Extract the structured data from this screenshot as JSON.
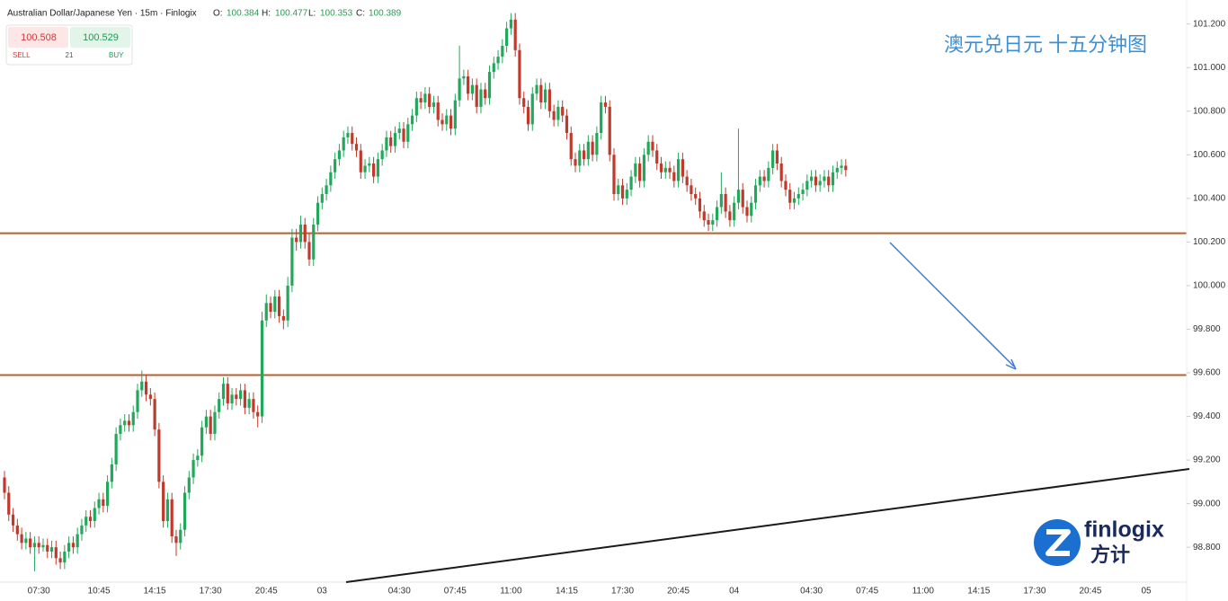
{
  "header": {
    "title": "Australian Dollar/Japanese Yen · 15m · Finlogix",
    "ohlc_labels": [
      "O:",
      "H:",
      "L:",
      "C:"
    ],
    "ohlc_values": [
      100.384,
      100.477,
      100.353,
      100.389
    ]
  },
  "trade_panel": {
    "sell_price": 100.508,
    "buy_price": 100.529,
    "spread": 21,
    "sell_label": "SELL",
    "buy_label": "BUY"
  },
  "annotation": "澳元兑日元 十五分钟图",
  "logo": {
    "text": "finlogix",
    "subtext": "方计"
  },
  "chart_data": {
    "type": "candlestick",
    "up_color": "#22a85a",
    "down_color": "#c0392b",
    "ylim": [
      98.64,
      101.31
    ],
    "yticks": [
      {
        "value": 98.8,
        "label": "98.800"
      },
      {
        "value": 99.0,
        "label": "99.000"
      },
      {
        "value": 99.2,
        "label": "99.200"
      },
      {
        "value": 99.4,
        "label": "99.400"
      },
      {
        "value": 99.6,
        "label": "99.600"
      },
      {
        "value": 99.8,
        "label": "99.800"
      },
      {
        "value": 100.0,
        "label": "100.000"
      },
      {
        "value": 100.2,
        "label": "100.200"
      },
      {
        "value": 100.4,
        "label": "100.400"
      },
      {
        "value": 100.6,
        "label": "100.600"
      },
      {
        "value": 100.8,
        "label": "100.800"
      },
      {
        "value": 101.0,
        "label": "101.000"
      },
      {
        "value": 101.2,
        "label": "101.200"
      }
    ],
    "levels": [
      100.24,
      99.59
    ],
    "level_color": "#b8602e",
    "categories": [
      null,
      null,
      null,
      null,
      null,
      null,
      null,
      null,
      "07:30",
      null,
      null,
      null,
      null,
      null,
      null,
      null,
      null,
      null,
      null,
      null,
      null,
      null,
      "10:45",
      null,
      null,
      null,
      null,
      null,
      null,
      null,
      null,
      null,
      null,
      null,
      null,
      "14:15",
      null,
      null,
      null,
      null,
      null,
      null,
      null,
      null,
      null,
      null,
      null,
      null,
      "17:30",
      null,
      null,
      null,
      null,
      null,
      null,
      null,
      null,
      null,
      null,
      null,
      null,
      "20:45",
      null,
      null,
      null,
      null,
      null,
      null,
      null,
      null,
      null,
      null,
      null,
      null,
      "03",
      null,
      null,
      null,
      null,
      null,
      null,
      null,
      null,
      null,
      null,
      null,
      null,
      null,
      null,
      null,
      null,
      null,
      "04:30",
      null,
      null,
      null,
      null,
      null,
      null,
      null,
      null,
      null,
      null,
      null,
      null,
      "07:45",
      null,
      null,
      null,
      null,
      null,
      null,
      null,
      null,
      null,
      null,
      null,
      null,
      "11:00",
      null,
      null,
      null,
      null,
      null,
      null,
      null,
      null,
      null,
      null,
      null,
      null,
      "14:15",
      null,
      null,
      null,
      null,
      null,
      null,
      null,
      null,
      null,
      null,
      null,
      null,
      "17:30",
      null,
      null,
      null,
      null,
      null,
      null,
      null,
      null,
      null,
      null,
      null,
      null,
      "20:45",
      null,
      null,
      null,
      null,
      null,
      null,
      null,
      null,
      null,
      null,
      null,
      null,
      "04",
      null,
      null,
      null,
      null,
      null,
      null,
      null,
      null,
      null,
      null,
      null,
      null,
      null,
      null,
      null,
      null,
      null,
      "04:30",
      null,
      null,
      null,
      null,
      null,
      null,
      null,
      null,
      null,
      null,
      null,
      null,
      "07:45",
      null,
      null,
      null,
      null,
      null,
      null,
      null,
      null,
      null,
      null,
      null,
      null,
      "11:00",
      null,
      null,
      null,
      null,
      null,
      null,
      null,
      null,
      null,
      null,
      null,
      null,
      "14:15",
      null,
      null,
      null,
      null,
      null,
      null,
      null,
      null,
      null,
      null,
      null,
      null,
      "17:30",
      null,
      null,
      null,
      null,
      null,
      null,
      null,
      null,
      null,
      null,
      null,
      null,
      "20:45",
      null,
      null,
      null,
      null,
      null,
      null,
      null,
      null,
      null,
      null,
      null,
      null,
      "05",
      null,
      null,
      null,
      null,
      null,
      null,
      null,
      null,
      null
    ],
    "open": [
      99.12,
      99.05,
      98.95,
      98.9,
      98.86,
      98.82,
      98.84,
      98.8,
      98.82,
      98.8,
      98.81,
      98.78,
      98.8,
      98.75,
      98.73,
      98.78,
      98.82,
      98.8,
      98.86,
      98.9,
      98.94,
      98.92,
      98.98,
      99.02,
      98.99,
      99.1,
      99.18,
      99.32,
      99.36,
      99.38,
      99.36,
      99.42,
      99.52,
      99.56,
      99.5,
      99.48,
      99.34,
      99.1,
      98.92,
      99.02,
      98.85,
      98.82,
      98.88,
      99.05,
      99.12,
      99.2,
      99.22,
      99.35,
      99.4,
      99.32,
      99.42,
      99.48,
      99.55,
      99.46,
      99.5,
      99.48,
      99.52,
      99.44,
      99.48,
      99.42,
      99.4,
      99.84,
      99.92,
      99.88,
      99.95,
      99.86,
      99.84,
      100.0,
      100.22,
      100.2,
      100.28,
      100.2,
      100.12,
      100.28,
      100.38,
      100.42,
      100.46,
      100.52,
      100.58,
      100.62,
      100.68,
      100.7,
      100.65,
      100.62,
      100.52,
      100.55,
      100.56,
      100.5,
      100.58,
      100.62,
      100.68,
      100.64,
      100.7,
      100.72,
      100.66,
      100.74,
      100.78,
      100.86,
      100.84,
      100.88,
      100.82,
      100.84,
      100.76,
      100.74,
      100.78,
      100.72,
      100.85,
      100.95,
      100.96,
      100.88,
      100.92,
      100.82,
      100.9,
      100.86,
      100.98,
      101.02,
      101.05,
      101.1,
      101.18,
      101.22,
      101.08,
      100.86,
      100.82,
      100.74,
      100.88,
      100.92,
      100.84,
      100.9,
      100.8,
      100.76,
      100.82,
      100.78,
      100.7,
      100.58,
      100.55,
      100.62,
      100.58,
      100.66,
      100.6,
      100.7,
      100.84,
      100.82,
      100.6,
      100.42,
      100.46,
      100.4,
      100.44,
      100.5,
      100.56,
      100.48,
      100.6,
      100.66,
      100.62,
      100.56,
      100.52,
      100.54,
      100.52,
      100.48,
      100.58,
      100.5,
      100.46,
      100.42,
      100.4,
      100.34,
      100.3,
      100.28,
      100.3,
      100.36,
      100.42,
      100.34,
      100.3,
      100.38,
      100.44,
      100.36,
      100.32,
      100.38,
      100.46,
      100.5,
      100.48,
      100.54,
      100.62,
      100.56,
      100.48,
      100.44,
      100.38,
      100.4,
      100.42,
      100.44,
      100.48,
      100.5,
      100.46,
      100.48,
      100.5,
      100.46,
      100.52,
      100.54,
      100.55,
      null,
      null,
      null,
      null,
      null,
      null,
      null,
      null,
      null,
      null,
      null,
      null,
      null,
      null,
      null,
      null,
      null,
      null,
      null,
      null,
      null,
      null,
      null,
      null,
      null,
      null,
      null,
      null,
      null,
      null,
      null,
      null,
      null,
      null,
      null,
      null,
      null,
      null,
      null,
      null,
      null,
      null,
      null,
      null,
      null,
      null,
      null,
      null,
      null,
      null,
      null,
      null,
      null,
      null,
      null,
      null,
      null,
      null,
      null,
      null,
      null,
      null,
      null,
      null,
      null,
      null,
      null,
      null,
      null,
      null,
      null,
      null,
      null,
      null,
      null,
      null,
      null,
      null,
      null
    ],
    "high": [
      99.15,
      99.08,
      98.98,
      98.93,
      98.89,
      98.87,
      98.87,
      98.85,
      98.85,
      98.84,
      98.84,
      98.83,
      98.83,
      98.78,
      98.81,
      98.85,
      98.85,
      98.89,
      98.93,
      98.97,
      98.97,
      99.01,
      99.05,
      99.05,
      99.13,
      99.21,
      99.35,
      99.39,
      99.41,
      99.41,
      99.45,
      99.55,
      99.61,
      99.59,
      99.53,
      99.51,
      99.37,
      99.13,
      99.05,
      99.05,
      98.88,
      98.91,
      99.08,
      99.15,
      99.23,
      99.25,
      99.38,
      99.43,
      99.43,
      99.45,
      99.51,
      99.58,
      99.58,
      99.53,
      99.53,
      99.55,
      99.55,
      99.51,
      99.51,
      99.45,
      99.88,
      99.96,
      99.95,
      99.98,
      99.98,
      99.89,
      100.04,
      100.26,
      100.26,
      100.32,
      100.31,
      100.24,
      100.31,
      100.41,
      100.45,
      100.49,
      100.55,
      100.61,
      100.65,
      100.71,
      100.73,
      100.73,
      100.68,
      100.65,
      100.58,
      100.59,
      100.59,
      100.61,
      100.65,
      100.71,
      100.71,
      100.73,
      100.75,
      100.75,
      100.77,
      100.81,
      100.89,
      100.89,
      100.91,
      100.91,
      100.87,
      100.87,
      100.79,
      100.81,
      100.81,
      100.88,
      101.1,
      100.99,
      100.99,
      100.95,
      100.95,
      100.93,
      100.93,
      101.01,
      101.05,
      101.08,
      101.13,
      101.21,
      101.25,
      101.25,
      101.11,
      100.89,
      100.85,
      100.91,
      100.95,
      100.95,
      100.93,
      100.93,
      100.83,
      100.85,
      100.85,
      100.81,
      100.73,
      100.61,
      100.65,
      100.65,
      100.69,
      100.69,
      100.73,
      100.87,
      100.87,
      100.85,
      100.63,
      100.49,
      100.49,
      100.47,
      100.53,
      100.59,
      100.59,
      100.63,
      100.69,
      100.69,
      100.65,
      100.59,
      100.57,
      100.57,
      100.55,
      100.61,
      100.61,
      100.53,
      100.49,
      100.45,
      100.43,
      100.37,
      100.33,
      100.33,
      100.39,
      100.52,
      100.45,
      100.37,
      100.41,
      100.72,
      100.47,
      100.39,
      100.41,
      100.49,
      100.53,
      100.53,
      100.57,
      100.65,
      100.65,
      100.59,
      100.51,
      100.47,
      100.43,
      100.45,
      100.47,
      100.51,
      100.53,
      100.53,
      100.51,
      100.53,
      100.53,
      100.55,
      100.57,
      100.58,
      100.58,
      null,
      null,
      null,
      null,
      null,
      null,
      null,
      null,
      null,
      null,
      null,
      null,
      null,
      null,
      null,
      null,
      null,
      null,
      null,
      null,
      null,
      null,
      null,
      null,
      null,
      null,
      null,
      null,
      null,
      null,
      null,
      null,
      null,
      null,
      null,
      null,
      null,
      null,
      null,
      null,
      null,
      null,
      null,
      null,
      null,
      null,
      null,
      null,
      null,
      null,
      null,
      null,
      null,
      null,
      null,
      null,
      null,
      null,
      null,
      null,
      null,
      null,
      null,
      null,
      null,
      null,
      null,
      null,
      null,
      null,
      null,
      null,
      null,
      null,
      null,
      null,
      null,
      null,
      null
    ],
    "low": [
      99.02,
      98.92,
      98.87,
      98.83,
      98.79,
      98.79,
      98.77,
      98.69,
      98.77,
      98.78,
      98.75,
      98.75,
      98.72,
      98.7,
      98.7,
      98.75,
      98.77,
      98.77,
      98.83,
      98.87,
      98.89,
      98.89,
      98.95,
      98.96,
      98.96,
      99.07,
      99.15,
      99.29,
      99.33,
      99.33,
      99.33,
      99.39,
      99.49,
      99.47,
      99.45,
      99.31,
      99.07,
      98.89,
      98.89,
      98.82,
      98.76,
      98.79,
      98.85,
      99.02,
      99.09,
      99.17,
      99.19,
      99.32,
      99.29,
      99.29,
      99.39,
      99.45,
      99.43,
      99.43,
      99.45,
      99.45,
      99.41,
      99.41,
      99.39,
      99.35,
      99.37,
      99.81,
      99.85,
      99.85,
      99.83,
      99.8,
      99.81,
      99.97,
      100.16,
      100.17,
      100.17,
      100.09,
      100.09,
      100.25,
      100.35,
      100.39,
      100.43,
      100.49,
      100.55,
      100.59,
      100.65,
      100.62,
      100.59,
      100.49,
      100.49,
      100.52,
      100.47,
      100.47,
      100.55,
      100.59,
      100.61,
      100.61,
      100.67,
      100.63,
      100.63,
      100.71,
      100.75,
      100.81,
      100.81,
      100.79,
      100.79,
      100.73,
      100.71,
      100.71,
      100.69,
      100.69,
      100.82,
      100.92,
      100.85,
      100.85,
      100.79,
      100.79,
      100.83,
      100.83,
      100.95,
      100.99,
      101.02,
      101.07,
      101.15,
      101.05,
      100.83,
      100.79,
      100.71,
      100.71,
      100.85,
      100.81,
      100.81,
      100.77,
      100.73,
      100.73,
      100.75,
      100.67,
      100.55,
      100.52,
      100.52,
      100.55,
      100.55,
      100.57,
      100.57,
      100.67,
      100.79,
      100.57,
      100.39,
      100.39,
      100.37,
      100.37,
      100.41,
      100.47,
      100.45,
      100.45,
      100.57,
      100.59,
      100.53,
      100.49,
      100.49,
      100.49,
      100.45,
      100.45,
      100.47,
      100.43,
      100.39,
      100.37,
      100.31,
      100.27,
      100.25,
      100.25,
      100.27,
      100.33,
      100.31,
      100.27,
      100.27,
      100.35,
      100.33,
      100.29,
      100.29,
      100.35,
      100.43,
      100.45,
      100.45,
      100.51,
      100.53,
      100.45,
      100.41,
      100.35,
      100.35,
      100.37,
      100.39,
      100.41,
      100.45,
      100.43,
      100.43,
      100.45,
      100.43,
      100.43,
      100.49,
      100.51,
      100.5,
      null,
      null,
      null,
      null,
      null,
      null,
      null,
      null,
      null,
      null,
      null,
      null,
      null,
      null,
      null,
      null,
      null,
      null,
      null,
      null,
      null,
      null,
      null,
      null,
      null,
      null,
      null,
      null,
      null,
      null,
      null,
      null,
      null,
      null,
      null,
      null,
      null,
      null,
      null,
      null,
      null,
      null,
      null,
      null,
      null,
      null,
      null,
      null,
      null,
      null,
      null,
      null,
      null,
      null,
      null,
      null,
      null,
      null,
      null,
      null,
      null,
      null,
      null,
      null,
      null,
      null,
      null,
      null,
      null,
      null,
      null,
      null,
      null,
      null,
      null,
      null,
      null,
      null,
      null
    ],
    "close": [
      99.05,
      98.95,
      98.9,
      98.86,
      98.82,
      98.84,
      98.8,
      98.82,
      98.8,
      98.81,
      98.78,
      98.8,
      98.75,
      98.73,
      98.78,
      98.82,
      98.8,
      98.86,
      98.9,
      98.94,
      98.92,
      98.98,
      99.02,
      98.99,
      99.1,
      99.18,
      99.32,
      99.36,
      99.38,
      99.36,
      99.42,
      99.52,
      99.56,
      99.5,
      99.48,
      99.34,
      99.1,
      98.92,
      99.02,
      98.85,
      98.82,
      98.88,
      99.05,
      99.12,
      99.2,
      99.22,
      99.35,
      99.4,
      99.32,
      99.42,
      99.48,
      99.55,
      99.46,
      99.5,
      99.48,
      99.52,
      99.44,
      99.48,
      99.42,
      99.4,
      99.84,
      99.92,
      99.88,
      99.95,
      99.86,
      99.84,
      100.0,
      100.22,
      100.2,
      100.28,
      100.2,
      100.12,
      100.28,
      100.38,
      100.42,
      100.46,
      100.52,
      100.58,
      100.62,
      100.68,
      100.7,
      100.65,
      100.62,
      100.52,
      100.55,
      100.56,
      100.5,
      100.58,
      100.62,
      100.68,
      100.64,
      100.7,
      100.72,
      100.66,
      100.74,
      100.78,
      100.86,
      100.84,
      100.88,
      100.82,
      100.84,
      100.76,
      100.74,
      100.78,
      100.72,
      100.85,
      100.95,
      100.96,
      100.88,
      100.92,
      100.82,
      100.9,
      100.86,
      100.98,
      101.02,
      101.05,
      101.1,
      101.18,
      101.22,
      101.08,
      100.86,
      100.82,
      100.74,
      100.88,
      100.92,
      100.84,
      100.9,
      100.8,
      100.76,
      100.82,
      100.78,
      100.7,
      100.58,
      100.55,
      100.62,
      100.58,
      100.66,
      100.6,
      100.7,
      100.84,
      100.82,
      100.6,
      100.42,
      100.46,
      100.4,
      100.44,
      100.5,
      100.56,
      100.48,
      100.6,
      100.66,
      100.62,
      100.56,
      100.52,
      100.54,
      100.52,
      100.48,
      100.58,
      100.5,
      100.46,
      100.42,
      100.4,
      100.34,
      100.3,
      100.28,
      100.3,
      100.36,
      100.42,
      100.34,
      100.3,
      100.38,
      100.44,
      100.36,
      100.32,
      100.38,
      100.46,
      100.5,
      100.48,
      100.54,
      100.62,
      100.56,
      100.48,
      100.44,
      100.38,
      100.4,
      100.42,
      100.44,
      100.48,
      100.5,
      100.46,
      100.48,
      100.5,
      100.46,
      100.52,
      100.54,
      100.55,
      100.53,
      null,
      null,
      null,
      null,
      null,
      null,
      null,
      null,
      null,
      null,
      null,
      null,
      null,
      null,
      null,
      null,
      null,
      null,
      null,
      null,
      null,
      null,
      null,
      null,
      null,
      null,
      null,
      null,
      null,
      null,
      null,
      null,
      null,
      null,
      null,
      null,
      null,
      null,
      null,
      null,
      null,
      null,
      null,
      null,
      null,
      null,
      null,
      null,
      null,
      null,
      null,
      null,
      null,
      null,
      null,
      null,
      null,
      null,
      null,
      null,
      null,
      null,
      null,
      null,
      null,
      null,
      null,
      null,
      null,
      null,
      null,
      null,
      null,
      null,
      null,
      null,
      null,
      null,
      null
    ]
  }
}
